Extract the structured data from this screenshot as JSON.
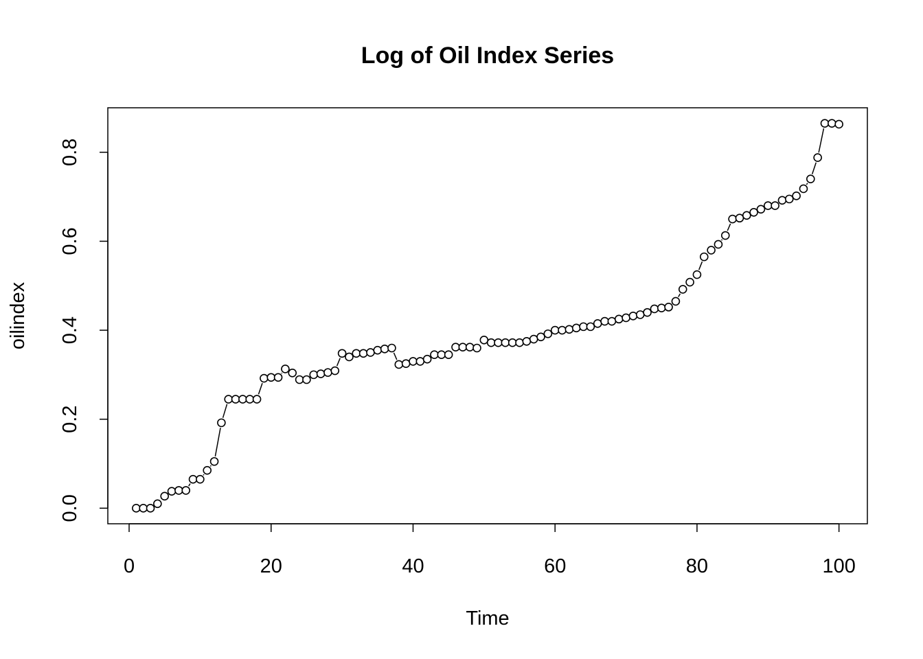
{
  "chart_data": {
    "type": "line",
    "plot_style": "b",
    "title": "Log of Oil Index Series",
    "xlabel": "Time",
    "ylabel": "oilindex",
    "xlim": [
      -3,
      104
    ],
    "ylim": [
      -0.035,
      0.9
    ],
    "xticks": [
      0,
      20,
      40,
      60,
      80,
      100
    ],
    "xtick_labels": [
      "0",
      "20",
      "40",
      "60",
      "80",
      "100"
    ],
    "yticks": [
      0,
      0.2,
      0.4,
      0.6,
      0.8
    ],
    "ytick_labels": [
      "0.0",
      "0.2",
      "0.4",
      "0.6",
      "0.8"
    ],
    "grid": false,
    "series": [
      {
        "x": [
          1,
          2,
          3,
          4,
          5,
          6,
          7,
          8,
          9,
          10,
          11,
          12,
          13,
          14,
          15,
          16,
          17,
          18,
          19,
          20,
          21,
          22,
          23,
          24,
          25,
          26,
          27,
          28,
          29,
          30,
          31,
          32,
          33,
          34,
          35,
          36,
          37,
          38,
          39,
          40,
          41,
          42,
          43,
          44,
          45,
          46,
          47,
          48,
          49,
          50,
          51,
          52,
          53,
          54,
          55,
          56,
          57,
          58,
          59,
          60,
          61,
          62,
          63,
          64,
          65,
          66,
          67,
          68,
          69,
          70,
          71,
          72,
          73,
          74,
          75,
          76,
          77,
          78,
          79,
          80,
          81,
          82,
          83,
          84,
          85,
          86,
          87,
          88,
          89,
          90,
          91,
          92,
          93,
          94,
          95,
          96,
          97,
          98,
          99,
          100
        ],
        "values": [
          0.0,
          0.0,
          0.0,
          0.01,
          0.027,
          0.038,
          0.04,
          0.04,
          0.065,
          0.065,
          0.085,
          0.105,
          0.192,
          0.245,
          0.245,
          0.245,
          0.245,
          0.245,
          0.292,
          0.294,
          0.294,
          0.313,
          0.304,
          0.289,
          0.289,
          0.3,
          0.302,
          0.305,
          0.309,
          0.348,
          0.34,
          0.348,
          0.348,
          0.35,
          0.355,
          0.358,
          0.36,
          0.323,
          0.325,
          0.33,
          0.33,
          0.335,
          0.345,
          0.345,
          0.345,
          0.362,
          0.362,
          0.362,
          0.36,
          0.378,
          0.372,
          0.372,
          0.372,
          0.372,
          0.372,
          0.375,
          0.38,
          0.385,
          0.392,
          0.4,
          0.4,
          0.402,
          0.405,
          0.408,
          0.408,
          0.415,
          0.42,
          0.42,
          0.425,
          0.428,
          0.432,
          0.435,
          0.44,
          0.448,
          0.45,
          0.452,
          0.465,
          0.492,
          0.508,
          0.525,
          0.565,
          0.58,
          0.593,
          0.613,
          0.65,
          0.652,
          0.658,
          0.665,
          0.672,
          0.68,
          0.68,
          0.692,
          0.695,
          0.702,
          0.718,
          0.74,
          0.788,
          0.865,
          0.865,
          0.863
        ]
      }
    ]
  }
}
